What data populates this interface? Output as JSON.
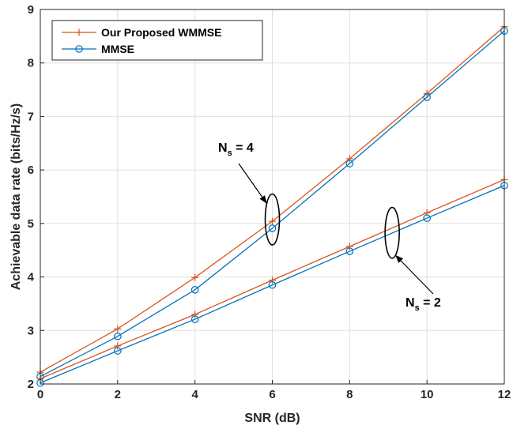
{
  "chart_data": {
    "type": "line",
    "xlabel": "SNR (dB)",
    "ylabel": "Achievable data rate (bits/Hz/s)",
    "xlim": [
      0,
      12
    ],
    "ylim": [
      2,
      9
    ],
    "xticks": [
      0,
      2,
      4,
      6,
      8,
      10,
      12
    ],
    "yticks": [
      2,
      3,
      4,
      5,
      6,
      7,
      8,
      9
    ],
    "grid": true,
    "legend_position": "top-left",
    "x": [
      0,
      2,
      4,
      6,
      8,
      10,
      12
    ],
    "series": [
      {
        "name": "Our Proposed WMMSE",
        "group": "Ns=4",
        "color": "#d95319",
        "marker": "plus",
        "values": [
          2.22,
          3.03,
          3.99,
          5.04,
          6.21,
          7.43,
          8.68
        ]
      },
      {
        "name": "MMSE",
        "group": "Ns=4",
        "color": "#0072bd",
        "marker": "circle",
        "values": [
          2.14,
          2.89,
          3.76,
          4.91,
          6.12,
          7.36,
          8.6
        ]
      },
      {
        "name": "Our Proposed WMMSE",
        "group": "Ns=2",
        "color": "#d95319",
        "marker": "plus",
        "values": [
          2.1,
          2.71,
          3.3,
          3.94,
          4.57,
          5.2,
          5.82
        ]
      },
      {
        "name": "MMSE",
        "group": "Ns=2",
        "color": "#0072bd",
        "marker": "circle",
        "values": [
          2.02,
          2.62,
          3.21,
          3.85,
          4.48,
          5.1,
          5.71
        ]
      }
    ],
    "legend": [
      {
        "label": "Our Proposed WMMSE",
        "color": "#d95319",
        "marker": "plus"
      },
      {
        "label": "MMSE",
        "color": "#0072bd",
        "marker": "circle"
      }
    ],
    "annotations": [
      {
        "main": "N",
        "sub": "s",
        "rest": " = 4",
        "ellipse_at": [
          6,
          4.98
        ],
        "ellipse_span": [
          4.6,
          5.55
        ]
      },
      {
        "main": "N",
        "sub": "s",
        "rest": " = 2",
        "ellipse_at": [
          9.1,
          4.8
        ],
        "ellipse_span": [
          4.35,
          5.3
        ]
      }
    ]
  }
}
